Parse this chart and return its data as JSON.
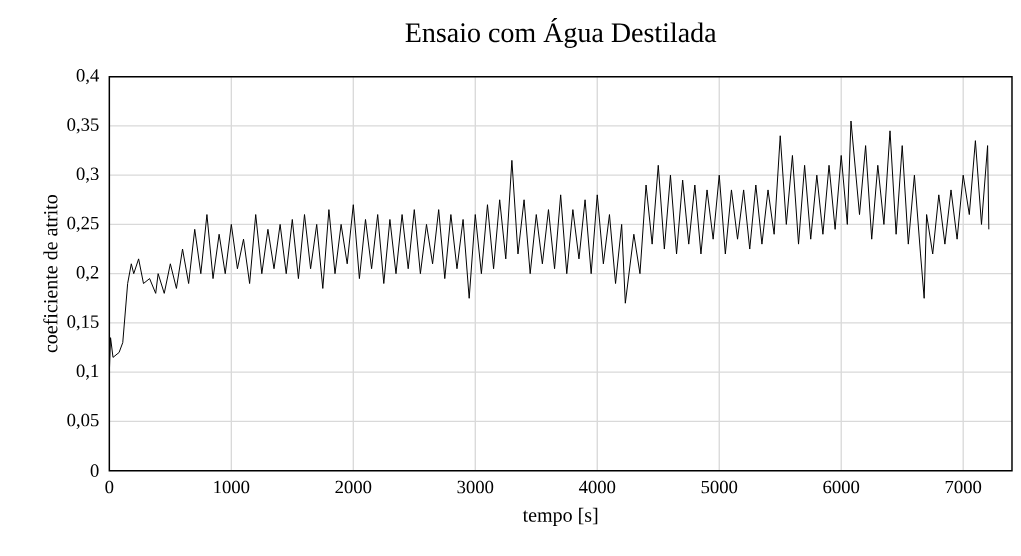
{
  "chart_data": {
    "type": "line",
    "title": "Ensaio com Água Destilada",
    "xlabel": "tempo [s]",
    "ylabel": "coeficiente de atrito",
    "xlim": [
      0,
      7400
    ],
    "xticks": [
      0,
      1000,
      2000,
      3000,
      4000,
      5000,
      6000,
      7000
    ],
    "ylim": [
      0,
      0.4
    ],
    "yticks": [
      {
        "value": 0,
        "label": "0"
      },
      {
        "value": 0.05,
        "label": "0,05"
      },
      {
        "value": 0.1,
        "label": "0,1"
      },
      {
        "value": 0.15,
        "label": "0,15"
      },
      {
        "value": 0.2,
        "label": "0,2"
      },
      {
        "value": 0.25,
        "label": "0,25"
      },
      {
        "value": 0.3,
        "label": "0,3"
      },
      {
        "value": 0.35,
        "label": "0,35"
      },
      {
        "value": 0.4,
        "label": "0,4"
      }
    ],
    "grid": true,
    "marker": "none",
    "line_style": "solid",
    "series": [
      {
        "color": "#000000",
        "x": [
          0,
          10,
          30,
          80,
          110,
          150,
          180,
          200,
          240,
          280,
          330,
          380,
          400,
          450,
          500,
          550,
          600,
          650,
          700,
          750,
          800,
          850,
          900,
          950,
          1000,
          1050,
          1100,
          1150,
          1200,
          1250,
          1300,
          1350,
          1400,
          1450,
          1500,
          1550,
          1600,
          1650,
          1700,
          1750,
          1800,
          1850,
          1900,
          1950,
          2000,
          2050,
          2100,
          2150,
          2200,
          2250,
          2300,
          2350,
          2400,
          2450,
          2500,
          2550,
          2600,
          2650,
          2700,
          2750,
          2800,
          2850,
          2900,
          2950,
          3000,
          3050,
          3100,
          3150,
          3200,
          3250,
          3300,
          3350,
          3400,
          3450,
          3500,
          3550,
          3600,
          3650,
          3700,
          3750,
          3800,
          3850,
          3900,
          3950,
          4000,
          4050,
          4100,
          4150,
          4200,
          4230,
          4300,
          4350,
          4400,
          4450,
          4500,
          4550,
          4600,
          4650,
          4700,
          4750,
          4800,
          4850,
          4900,
          4950,
          5000,
          5050,
          5100,
          5150,
          5200,
          5250,
          5300,
          5350,
          5400,
          5450,
          5500,
          5550,
          5600,
          5650,
          5700,
          5750,
          5800,
          5850,
          5900,
          5950,
          6000,
          6050,
          6080,
          6150,
          6200,
          6250,
          6300,
          6350,
          6400,
          6450,
          6500,
          6550,
          6600,
          6650,
          6680,
          6700,
          6750,
          6800,
          6850,
          6900,
          6950,
          7000,
          7050,
          7100,
          7150,
          7200,
          7210
        ],
        "values": [
          0.1,
          0.135,
          0.115,
          0.12,
          0.13,
          0.19,
          0.21,
          0.2,
          0.215,
          0.19,
          0.195,
          0.18,
          0.2,
          0.18,
          0.21,
          0.185,
          0.225,
          0.19,
          0.245,
          0.2,
          0.26,
          0.195,
          0.24,
          0.2,
          0.25,
          0.205,
          0.235,
          0.19,
          0.26,
          0.2,
          0.245,
          0.205,
          0.25,
          0.2,
          0.255,
          0.195,
          0.26,
          0.205,
          0.25,
          0.185,
          0.265,
          0.2,
          0.25,
          0.21,
          0.27,
          0.195,
          0.255,
          0.205,
          0.26,
          0.19,
          0.255,
          0.2,
          0.26,
          0.205,
          0.265,
          0.2,
          0.25,
          0.21,
          0.265,
          0.195,
          0.26,
          0.205,
          0.255,
          0.175,
          0.26,
          0.2,
          0.27,
          0.205,
          0.275,
          0.215,
          0.315,
          0.22,
          0.275,
          0.2,
          0.26,
          0.21,
          0.265,
          0.205,
          0.28,
          0.2,
          0.265,
          0.215,
          0.275,
          0.2,
          0.28,
          0.21,
          0.26,
          0.19,
          0.25,
          0.17,
          0.24,
          0.2,
          0.29,
          0.23,
          0.31,
          0.225,
          0.3,
          0.22,
          0.295,
          0.23,
          0.29,
          0.22,
          0.285,
          0.235,
          0.3,
          0.22,
          0.285,
          0.235,
          0.285,
          0.225,
          0.29,
          0.23,
          0.285,
          0.24,
          0.34,
          0.25,
          0.32,
          0.23,
          0.31,
          0.235,
          0.3,
          0.24,
          0.31,
          0.245,
          0.32,
          0.25,
          0.355,
          0.26,
          0.33,
          0.235,
          0.31,
          0.25,
          0.345,
          0.24,
          0.33,
          0.23,
          0.3,
          0.22,
          0.175,
          0.26,
          0.22,
          0.28,
          0.23,
          0.285,
          0.235,
          0.3,
          0.26,
          0.335,
          0.25,
          0.33,
          0.245
        ]
      }
    ]
  }
}
